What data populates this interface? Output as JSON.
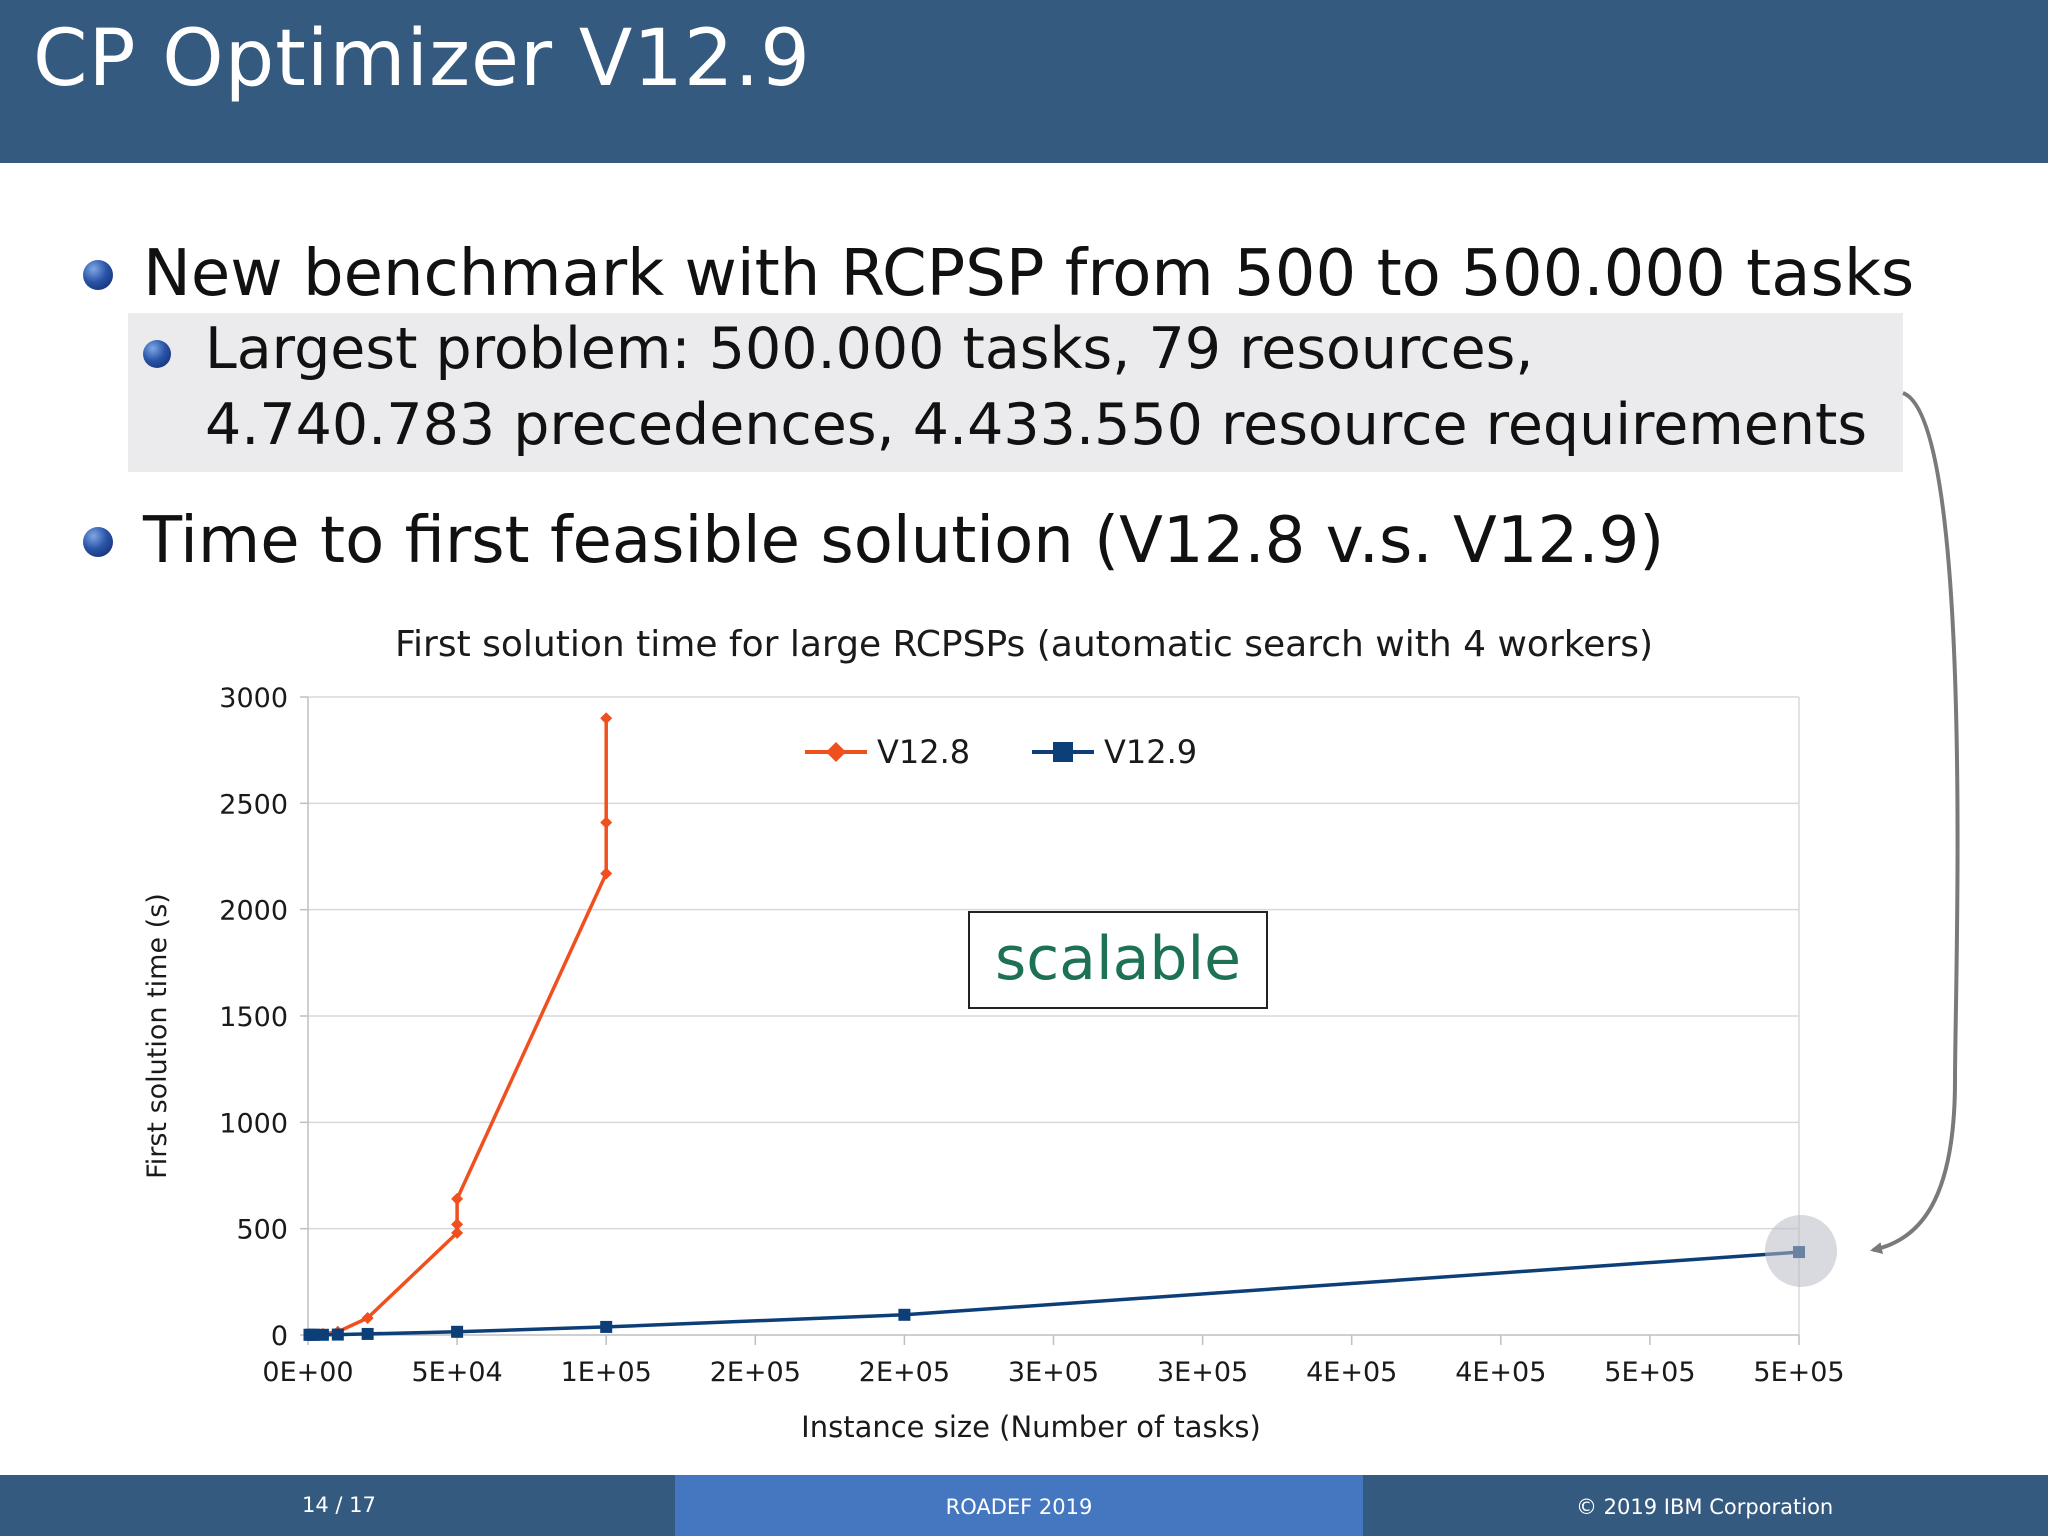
{
  "slide": {
    "title": "CP Optimizer V12.9",
    "bullets": {
      "b1": "New benchmark with RCPSP from 500 to 500.000 tasks",
      "b2_line1": "Largest problem: 500.000 tasks, 79 resources,",
      "b2_line2": "4.740.783 precedences, 4.433.550 resource requirements",
      "b3": "Time to first feasible solution (V12.8 v.s. V12.9)"
    },
    "callout": "scalable",
    "footer": {
      "page": "14 / 17",
      "conference": "ROADEF 2019",
      "copyright": "© 2019 IBM Corporation"
    }
  },
  "colors": {
    "title_bar": "#355a80",
    "footer_mid": "#4577c0",
    "v12_8": "#f04f1e",
    "v12_9": "#0c3e78",
    "callout_text": "#1d7156"
  },
  "chart_data": {
    "type": "line",
    "title": "First solution time for large RCPSPs (automatic search with 4 workers)",
    "xlabel": "Instance size (Number of tasks)",
    "ylabel": "First solution time (s)",
    "xlim": [
      0,
      500000
    ],
    "ylim": [
      0,
      3000
    ],
    "x_tick_labels": [
      "0E+00",
      "5E+04",
      "1E+05",
      "2E+05",
      "2E+05",
      "3E+05",
      "3E+05",
      "4E+05",
      "4E+05",
      "5E+05",
      "5E+05"
    ],
    "y_ticks": [
      0,
      500,
      1000,
      1500,
      2000,
      2500,
      3000
    ],
    "grid": true,
    "legend": "top",
    "series": [
      {
        "name": "V12.8",
        "marker": "diamond",
        "color": "#f04f1e",
        "points": [
          [
            500,
            2
          ],
          [
            1000,
            3
          ],
          [
            2000,
            3
          ],
          [
            5000,
            5
          ],
          [
            10000,
            15
          ],
          [
            20000,
            80
          ],
          [
            50000,
            480
          ],
          [
            50000,
            520
          ],
          [
            50000,
            640
          ],
          [
            100000,
            2170
          ],
          [
            100000,
            2410
          ],
          [
            100000,
            2900
          ]
        ]
      },
      {
        "name": "V12.9",
        "marker": "square",
        "color": "#0c3e78",
        "points": [
          [
            500,
            1
          ],
          [
            1000,
            1
          ],
          [
            2000,
            1
          ],
          [
            5000,
            1
          ],
          [
            10000,
            2
          ],
          [
            20000,
            5
          ],
          [
            50000,
            15
          ],
          [
            100000,
            38
          ],
          [
            200000,
            95
          ],
          [
            500000,
            390
          ]
        ]
      }
    ]
  }
}
